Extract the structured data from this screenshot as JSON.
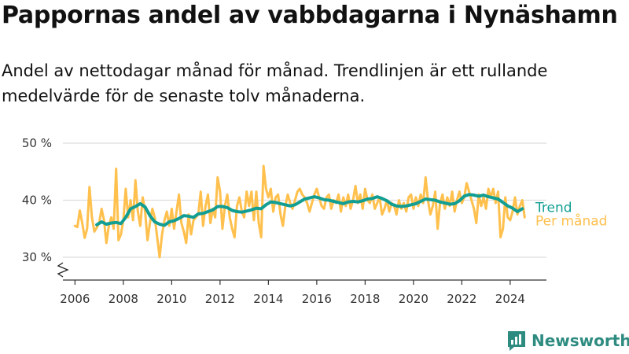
{
  "page": {
    "title": "Pappornas andel av vabbdagarna i Nynäshamn",
    "subtitle": "Andel av nettodagar månad för månad. Trendlinjen är ett rullande medelvärde för de senaste tolv månaderna."
  },
  "brand": {
    "name": "Newsworthy",
    "icon": "newsworthy-logo-icon",
    "color": "#2e8b80"
  },
  "chart_data": {
    "type": "line",
    "title": "Pappornas andel av vabbdagarna i Nynäshamn",
    "subtitle": "Andel av nettodagar månad för månad. Trendlinjen är ett rullande medelvärde för de senaste tolv månaderna.",
    "xlabel": "",
    "ylabel": "",
    "xlim": [
      2005.5,
      2025.5
    ],
    "ylim": [
      26,
      50
    ],
    "y_axis_break": true,
    "grid": "horizontal",
    "legend": "right-of-lines",
    "y_ticks": [
      {
        "value": 30,
        "label": "30 %"
      },
      {
        "value": 40,
        "label": "40 %"
      },
      {
        "value": 50,
        "label": "50 %"
      }
    ],
    "x_ticks": [
      {
        "value": 2006,
        "label": "2006"
      },
      {
        "value": 2008,
        "label": "2008"
      },
      {
        "value": 2010,
        "label": "2010"
      },
      {
        "value": 2012,
        "label": "2012"
      },
      {
        "value": 2014,
        "label": "2014"
      },
      {
        "value": 2016,
        "label": "2016"
      },
      {
        "value": 2018,
        "label": "2018"
      },
      {
        "value": 2020,
        "label": "2020"
      },
      {
        "value": 2022,
        "label": "2022"
      },
      {
        "value": 2024,
        "label": "2024"
      }
    ],
    "series": [
      {
        "name": "Per månad",
        "color": "#ffc04d",
        "points": [
          [
            2006.0,
            35.5
          ],
          [
            2006.1,
            35.3
          ],
          [
            2006.2,
            38.2
          ],
          [
            2006.3,
            36.0
          ],
          [
            2006.4,
            33.4
          ],
          [
            2006.5,
            35.0
          ],
          [
            2006.6,
            42.3
          ],
          [
            2006.7,
            37.0
          ],
          [
            2006.8,
            34.5
          ],
          [
            2006.9,
            35.2
          ],
          [
            2007.0,
            36.0
          ],
          [
            2007.1,
            38.5
          ],
          [
            2007.2,
            36.5
          ],
          [
            2007.3,
            32.5
          ],
          [
            2007.4,
            35.5
          ],
          [
            2007.5,
            37.0
          ],
          [
            2007.6,
            35.0
          ],
          [
            2007.7,
            45.5
          ],
          [
            2007.8,
            33.0
          ],
          [
            2007.9,
            34.0
          ],
          [
            2008.0,
            36.5
          ],
          [
            2008.1,
            42.0
          ],
          [
            2008.2,
            37.0
          ],
          [
            2008.3,
            40.0
          ],
          [
            2008.4,
            36.5
          ],
          [
            2008.5,
            43.5
          ],
          [
            2008.6,
            38.0
          ],
          [
            2008.7,
            35.5
          ],
          [
            2008.8,
            40.5
          ],
          [
            2008.9,
            38.0
          ],
          [
            2009.0,
            33.0
          ],
          [
            2009.1,
            36.0
          ],
          [
            2009.2,
            38.5
          ],
          [
            2009.3,
            37.0
          ],
          [
            2009.4,
            33.5
          ],
          [
            2009.5,
            30.0
          ],
          [
            2009.6,
            34.0
          ],
          [
            2009.7,
            36.5
          ],
          [
            2009.8,
            38.0
          ],
          [
            2009.9,
            35.5
          ],
          [
            2010.0,
            38.5
          ],
          [
            2010.1,
            35.0
          ],
          [
            2010.2,
            38.0
          ],
          [
            2010.3,
            41.0
          ],
          [
            2010.4,
            36.0
          ],
          [
            2010.5,
            34.5
          ],
          [
            2010.6,
            32.5
          ],
          [
            2010.7,
            37.5
          ],
          [
            2010.8,
            34.0
          ],
          [
            2010.9,
            36.5
          ],
          [
            2011.0,
            37.0
          ],
          [
            2011.1,
            37.5
          ],
          [
            2011.2,
            41.5
          ],
          [
            2011.3,
            35.5
          ],
          [
            2011.4,
            39.0
          ],
          [
            2011.5,
            41.0
          ],
          [
            2011.6,
            36.0
          ],
          [
            2011.7,
            38.5
          ],
          [
            2011.8,
            37.0
          ],
          [
            2011.9,
            44.0
          ],
          [
            2012.0,
            41.5
          ],
          [
            2012.1,
            35.0
          ],
          [
            2012.2,
            39.0
          ],
          [
            2012.3,
            41.0
          ],
          [
            2012.4,
            37.0
          ],
          [
            2012.5,
            35.0
          ],
          [
            2012.6,
            33.5
          ],
          [
            2012.7,
            39.0
          ],
          [
            2012.8,
            40.5
          ],
          [
            2012.9,
            38.0
          ],
          [
            2013.0,
            37.0
          ],
          [
            2013.1,
            41.5
          ],
          [
            2013.2,
            39.0
          ],
          [
            2013.3,
            41.5
          ],
          [
            2013.4,
            36.5
          ],
          [
            2013.5,
            41.5
          ],
          [
            2013.6,
            36.0
          ],
          [
            2013.7,
            33.5
          ],
          [
            2013.8,
            46.0
          ],
          [
            2013.9,
            42.0
          ],
          [
            2014.0,
            40.5
          ],
          [
            2014.1,
            42.0
          ],
          [
            2014.2,
            38.0
          ],
          [
            2014.3,
            40.5
          ],
          [
            2014.4,
            41.0
          ],
          [
            2014.5,
            37.5
          ],
          [
            2014.6,
            35.5
          ],
          [
            2014.7,
            39.0
          ],
          [
            2014.8,
            41.0
          ],
          [
            2014.9,
            39.5
          ],
          [
            2015.0,
            38.5
          ],
          [
            2015.1,
            40.0
          ],
          [
            2015.2,
            41.5
          ],
          [
            2015.3,
            42.0
          ],
          [
            2015.4,
            41.0
          ],
          [
            2015.5,
            40.5
          ],
          [
            2015.6,
            39.5
          ],
          [
            2015.7,
            38.0
          ],
          [
            2015.8,
            39.5
          ],
          [
            2015.9,
            41.0
          ],
          [
            2016.0,
            42.0
          ],
          [
            2016.1,
            40.5
          ],
          [
            2016.2,
            39.0
          ],
          [
            2016.3,
            38.5
          ],
          [
            2016.4,
            40.5
          ],
          [
            2016.5,
            41.0
          ],
          [
            2016.6,
            38.5
          ],
          [
            2016.7,
            40.0
          ],
          [
            2016.8,
            39.5
          ],
          [
            2016.9,
            41.0
          ],
          [
            2017.0,
            38.0
          ],
          [
            2017.1,
            40.5
          ],
          [
            2017.2,
            39.0
          ],
          [
            2017.3,
            41.0
          ],
          [
            2017.4,
            38.5
          ],
          [
            2017.5,
            40.0
          ],
          [
            2017.6,
            42.5
          ],
          [
            2017.7,
            39.5
          ],
          [
            2017.8,
            41.0
          ],
          [
            2017.9,
            38.5
          ],
          [
            2018.0,
            42.0
          ],
          [
            2018.1,
            40.0
          ],
          [
            2018.2,
            39.5
          ],
          [
            2018.3,
            41.0
          ],
          [
            2018.4,
            38.5
          ],
          [
            2018.5,
            39.5
          ],
          [
            2018.6,
            40.5
          ],
          [
            2018.7,
            37.5
          ],
          [
            2018.8,
            38.5
          ],
          [
            2018.9,
            40.0
          ],
          [
            2019.0,
            38.0
          ],
          [
            2019.1,
            39.5
          ],
          [
            2019.2,
            39.0
          ],
          [
            2019.3,
            37.5
          ],
          [
            2019.4,
            40.0
          ],
          [
            2019.5,
            38.5
          ],
          [
            2019.6,
            39.5
          ],
          [
            2019.7,
            38.0
          ],
          [
            2019.8,
            40.5
          ],
          [
            2019.9,
            41.0
          ],
          [
            2020.0,
            38.5
          ],
          [
            2020.1,
            40.5
          ],
          [
            2020.2,
            39.0
          ],
          [
            2020.3,
            41.0
          ],
          [
            2020.4,
            39.5
          ],
          [
            2020.5,
            44.0
          ],
          [
            2020.6,
            40.0
          ],
          [
            2020.7,
            37.5
          ],
          [
            2020.8,
            39.0
          ],
          [
            2020.9,
            41.5
          ],
          [
            2021.0,
            35.0
          ],
          [
            2021.1,
            39.5
          ],
          [
            2021.2,
            41.0
          ],
          [
            2021.3,
            38.5
          ],
          [
            2021.4,
            40.5
          ],
          [
            2021.5,
            39.0
          ],
          [
            2021.6,
            41.5
          ],
          [
            2021.7,
            38.0
          ],
          [
            2021.8,
            40.0
          ],
          [
            2021.9,
            41.5
          ],
          [
            2022.0,
            39.5
          ],
          [
            2022.1,
            40.5
          ],
          [
            2022.2,
            43.0
          ],
          [
            2022.3,
            41.5
          ],
          [
            2022.4,
            40.0
          ],
          [
            2022.5,
            38.5
          ],
          [
            2022.6,
            36.0
          ],
          [
            2022.7,
            41.0
          ],
          [
            2022.8,
            39.0
          ],
          [
            2022.9,
            40.5
          ],
          [
            2023.0,
            38.5
          ],
          [
            2023.1,
            42.0
          ],
          [
            2023.2,
            40.5
          ],
          [
            2023.3,
            42.0
          ],
          [
            2023.4,
            39.5
          ],
          [
            2023.5,
            41.5
          ],
          [
            2023.6,
            33.5
          ],
          [
            2023.7,
            35.0
          ],
          [
            2023.8,
            40.5
          ],
          [
            2023.9,
            37.0
          ],
          [
            2024.0,
            36.5
          ],
          [
            2024.1,
            38.0
          ],
          [
            2024.2,
            40.5
          ],
          [
            2024.3,
            37.5
          ],
          [
            2024.4,
            39.0
          ],
          [
            2024.5,
            40.0
          ],
          [
            2024.6,
            37.0
          ]
        ]
      },
      {
        "name": "Trend",
        "color": "#129e93",
        "points": [
          [
            2006.9,
            35.7
          ],
          [
            2007.1,
            36.2
          ],
          [
            2007.3,
            35.8
          ],
          [
            2007.5,
            36.0
          ],
          [
            2007.7,
            36.1
          ],
          [
            2007.9,
            35.9
          ],
          [
            2008.1,
            37.0
          ],
          [
            2008.3,
            38.5
          ],
          [
            2008.5,
            38.9
          ],
          [
            2008.7,
            39.4
          ],
          [
            2008.9,
            38.8
          ],
          [
            2009.1,
            37.3
          ],
          [
            2009.3,
            36.2
          ],
          [
            2009.5,
            35.8
          ],
          [
            2009.7,
            35.6
          ],
          [
            2009.9,
            36.2
          ],
          [
            2010.1,
            36.4
          ],
          [
            2010.3,
            36.8
          ],
          [
            2010.5,
            37.3
          ],
          [
            2010.7,
            37.2
          ],
          [
            2010.9,
            37.0
          ],
          [
            2011.1,
            37.6
          ],
          [
            2011.3,
            37.7
          ],
          [
            2011.5,
            38.0
          ],
          [
            2011.7,
            38.3
          ],
          [
            2011.9,
            38.9
          ],
          [
            2012.1,
            38.9
          ],
          [
            2012.3,
            38.7
          ],
          [
            2012.5,
            38.2
          ],
          [
            2012.7,
            38.0
          ],
          [
            2012.9,
            37.9
          ],
          [
            2013.1,
            38.1
          ],
          [
            2013.3,
            38.3
          ],
          [
            2013.5,
            38.6
          ],
          [
            2013.7,
            38.5
          ],
          [
            2013.9,
            39.2
          ],
          [
            2014.1,
            39.7
          ],
          [
            2014.3,
            39.6
          ],
          [
            2014.5,
            39.4
          ],
          [
            2014.7,
            39.2
          ],
          [
            2014.9,
            39.0
          ],
          [
            2015.1,
            39.2
          ],
          [
            2015.3,
            39.7
          ],
          [
            2015.5,
            40.2
          ],
          [
            2015.7,
            40.4
          ],
          [
            2015.9,
            40.6
          ],
          [
            2016.1,
            40.4
          ],
          [
            2016.3,
            40.1
          ],
          [
            2016.5,
            40.0
          ],
          [
            2016.7,
            39.8
          ],
          [
            2016.9,
            39.6
          ],
          [
            2017.1,
            39.4
          ],
          [
            2017.3,
            39.7
          ],
          [
            2017.5,
            39.8
          ],
          [
            2017.7,
            39.7
          ],
          [
            2017.9,
            39.9
          ],
          [
            2018.1,
            40.2
          ],
          [
            2018.3,
            40.3
          ],
          [
            2018.5,
            40.6
          ],
          [
            2018.7,
            40.3
          ],
          [
            2018.9,
            39.9
          ],
          [
            2019.1,
            39.3
          ],
          [
            2019.3,
            39.0
          ],
          [
            2019.5,
            38.9
          ],
          [
            2019.7,
            39.0
          ],
          [
            2019.9,
            39.2
          ],
          [
            2020.1,
            39.4
          ],
          [
            2020.3,
            39.8
          ],
          [
            2020.5,
            40.2
          ],
          [
            2020.7,
            40.1
          ],
          [
            2020.9,
            40.0
          ],
          [
            2021.1,
            39.7
          ],
          [
            2021.3,
            39.5
          ],
          [
            2021.5,
            39.3
          ],
          [
            2021.7,
            39.4
          ],
          [
            2021.9,
            39.9
          ],
          [
            2022.1,
            40.7
          ],
          [
            2022.3,
            41.0
          ],
          [
            2022.5,
            40.9
          ],
          [
            2022.7,
            40.7
          ],
          [
            2022.9,
            40.9
          ],
          [
            2023.1,
            40.6
          ],
          [
            2023.3,
            40.4
          ],
          [
            2023.5,
            40.2
          ],
          [
            2023.7,
            39.6
          ],
          [
            2023.9,
            39.0
          ],
          [
            2024.1,
            38.6
          ],
          [
            2024.3,
            38.0
          ],
          [
            2024.5,
            38.5
          ]
        ]
      }
    ]
  }
}
